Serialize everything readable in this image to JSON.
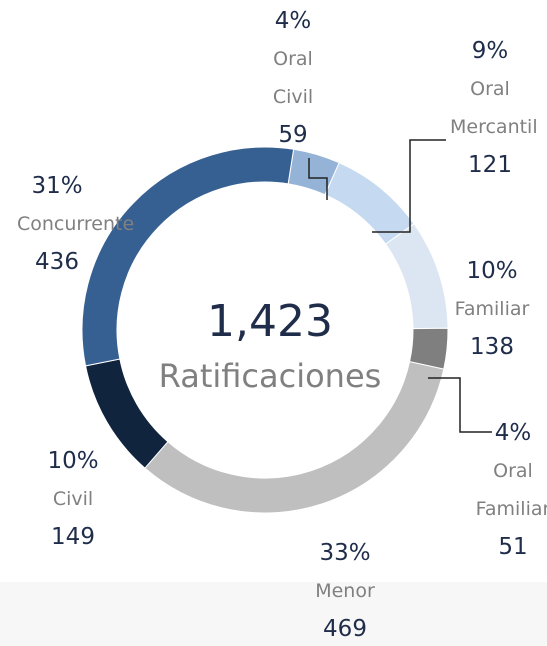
{
  "chart_data": {
    "type": "donut",
    "categories": [
      "Oral Civil",
      "Oral Mercantil",
      "Familiar",
      "Oral Familiar",
      "Menor",
      "Civil",
      "Concurrente"
    ],
    "values": [
      59,
      121,
      138,
      51,
      469,
      149,
      436
    ],
    "percent_labels": [
      "4%",
      "9%",
      "10%",
      "4%",
      "33%",
      "10%",
      "31%"
    ],
    "colors": [
      "#95b3d7",
      "#c5d9f1",
      "#dce6f2",
      "#7f7f7f",
      "#bfbfbf",
      "#10243e",
      "#366092"
    ],
    "center_value": "1,423",
    "center_label": "Ratificaciones"
  }
}
